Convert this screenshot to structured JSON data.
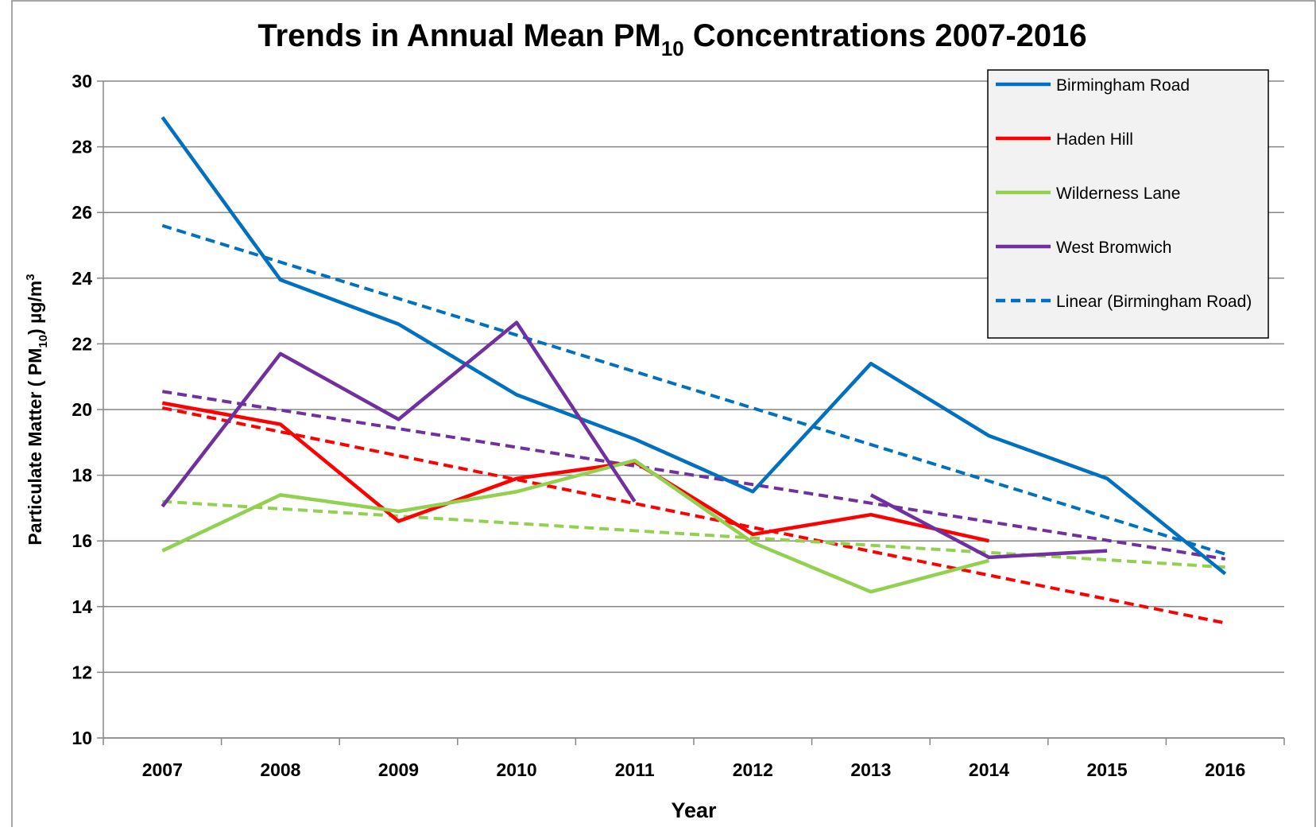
{
  "chart_data": {
    "type": "line",
    "title": {
      "main": "Trends in Annual Mean PM",
      "sub": "10",
      "rest": " Concentrations  2007-2016"
    },
    "xlabel": "Year",
    "ylabel": {
      "a": "Particulate Matter ( PM",
      "b": "10",
      "c": ")  µg/m",
      "d": "3"
    },
    "categories": [
      "2007",
      "2008",
      "2009",
      "2010",
      "2011",
      "2012",
      "2013",
      "2014",
      "2015",
      "2016"
    ],
    "ylim": [
      10,
      30
    ],
    "yticks": [
      10,
      12,
      14,
      16,
      18,
      20,
      22,
      24,
      26,
      28,
      30
    ],
    "grid": true,
    "series": [
      {
        "name": "Birmingham Road",
        "color": "#0070c0",
        "values": [
          28.9,
          23.95,
          22.6,
          20.45,
          19.1,
          17.5,
          21.4,
          19.2,
          17.9,
          15.0
        ]
      },
      {
        "name": "Haden Hill",
        "color": "#ff0000",
        "values": [
          20.2,
          19.55,
          16.6,
          17.9,
          18.4,
          16.2,
          16.8,
          16.0,
          null,
          null
        ]
      },
      {
        "name": "Wilderness Lane",
        "color": "#92d050",
        "values": [
          15.7,
          17.4,
          16.9,
          17.5,
          18.45,
          15.95,
          14.45,
          15.4,
          null,
          null
        ]
      },
      {
        "name": "West Bromwich",
        "color": "#7030a0",
        "values": [
          17.05,
          21.7,
          19.7,
          22.65,
          17.2,
          null,
          17.4,
          15.5,
          15.7,
          null
        ]
      }
    ],
    "trendlines": [
      {
        "name": "Linear (Birmingham Road)",
        "color": "#0070c0",
        "values": [
          25.6,
          15.6
        ]
      },
      {
        "color": "#ff0000",
        "values": [
          20.05,
          13.5
        ]
      },
      {
        "color": "#92d050",
        "values": [
          17.2,
          15.2
        ]
      },
      {
        "color": "#7030a0",
        "values": [
          20.55,
          15.45
        ]
      }
    ]
  }
}
